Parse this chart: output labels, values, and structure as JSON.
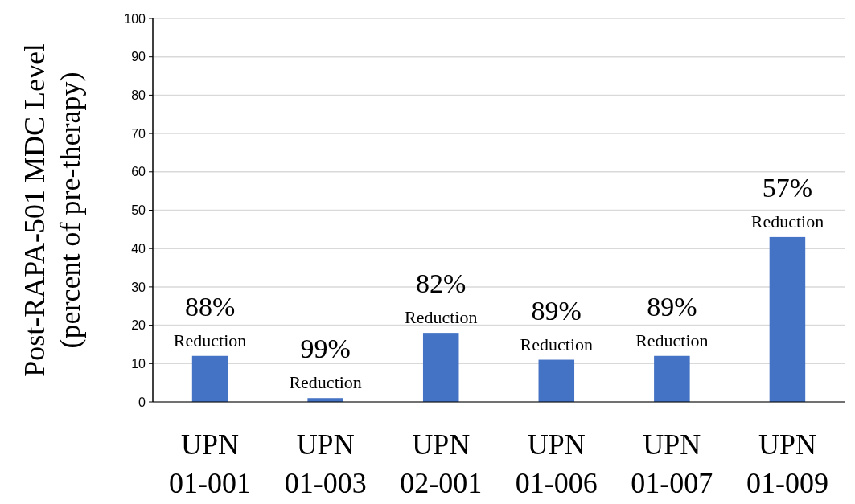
{
  "chart_data": {
    "type": "bar",
    "ylabel": "Post-RAPA-501 MDC Level\n(percent of pre-therapy)",
    "categories": [
      "UPN\n01-001",
      "UPN\n01-003",
      "UPN\n02-001",
      "UPN\n01-006",
      "UPN\n01-007",
      "UPN\n01-009"
    ],
    "values": [
      12,
      1,
      18,
      11,
      12,
      43
    ],
    "color": "#4472c4",
    "ylim": [
      0,
      100
    ],
    "yticks": [
      0,
      10,
      20,
      30,
      40,
      50,
      60,
      70,
      80,
      90,
      100
    ],
    "grid": "y",
    "annotations": [
      {
        "text": "88%\nReduction",
        "x": "UPN\n01-001",
        "y": 12
      },
      {
        "text": "99%\nReduction",
        "x": "UPN\n01-003",
        "y": 1
      },
      {
        "text": "82%\nReduction",
        "x": "UPN\n02-001",
        "y": 18
      },
      {
        "text": "89%\nReduction",
        "x": "UPN\n01-006",
        "y": 11
      },
      {
        "text": "89%\nReduction",
        "x": "UPN\n01-007",
        "y": 12
      },
      {
        "text": "57%\nReduction",
        "x": "UPN\n01-009",
        "y": 43
      }
    ]
  }
}
